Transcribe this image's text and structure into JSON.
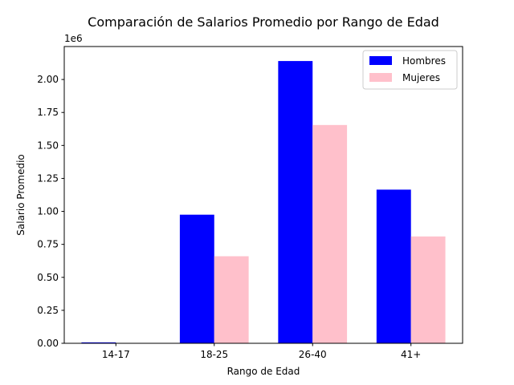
{
  "chart_data": {
    "type": "bar",
    "title": "Comparación de Salarios Promedio por Rango de Edad",
    "xlabel": "Rango de Edad",
    "ylabel": "Salario Promedio",
    "y_offset_label": "1e6",
    "categories": [
      "14-17",
      "18-25",
      "26-40",
      "41+"
    ],
    "series": [
      {
        "name": "Hombres",
        "color": "#0000ff",
        "values": [
          7000,
          975000,
          2140000,
          1165000
        ]
      },
      {
        "name": "Mujeres",
        "color": "#ffc0cb",
        "values": [
          0,
          660000,
          1655000,
          810000
        ]
      }
    ],
    "ylim": [
      0,
      2250000
    ],
    "yticks": [
      0,
      250000,
      500000,
      750000,
      1000000,
      1250000,
      1500000,
      1750000,
      2000000
    ],
    "ytick_labels": [
      "0.00",
      "0.25",
      "0.50",
      "0.75",
      "1.00",
      "1.25",
      "1.50",
      "1.75",
      "2.00"
    ],
    "grid": false,
    "legend_position": "top-right"
  }
}
